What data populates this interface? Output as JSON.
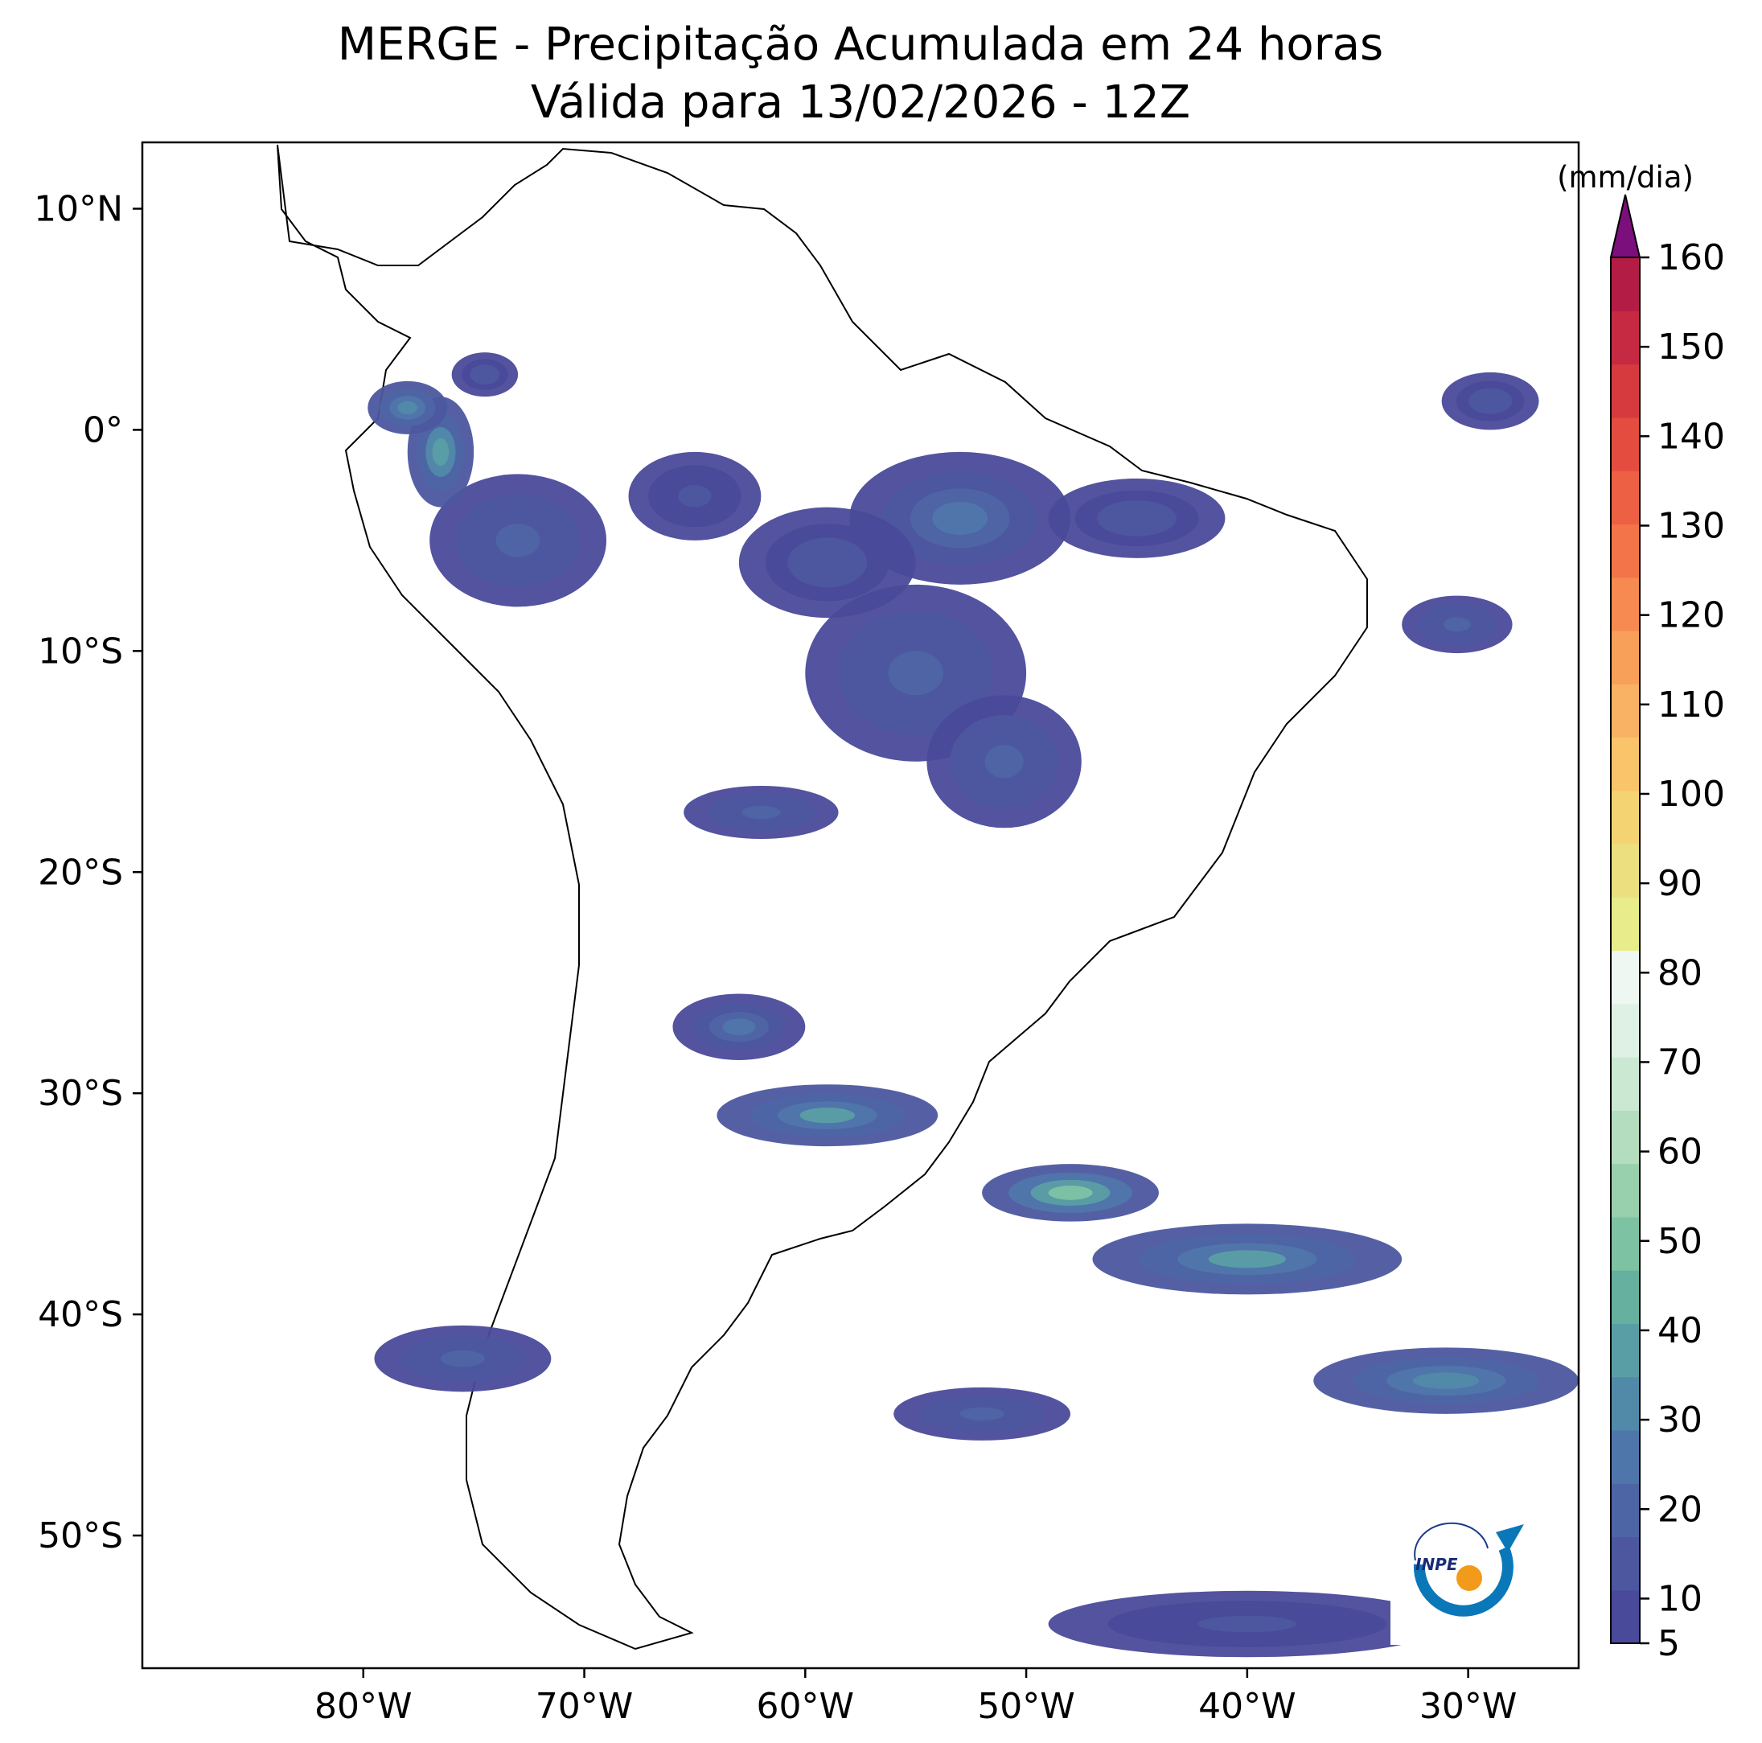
{
  "title": {
    "line1": "MERGE - Precipitação Acumulada em 24 horas",
    "line2": "Válida para 13/02/2026 - 12Z"
  },
  "axes": {
    "lon_range": [
      -90,
      -25
    ],
    "lat_range": [
      -56,
      13
    ],
    "x_ticks": [
      {
        "value": -80,
        "label": "80°W"
      },
      {
        "value": -70,
        "label": "70°W"
      },
      {
        "value": -60,
        "label": "60°W"
      },
      {
        "value": -50,
        "label": "50°W"
      },
      {
        "value": -40,
        "label": "40°W"
      },
      {
        "value": -30,
        "label": "30°W"
      }
    ],
    "y_ticks": [
      {
        "value": 10,
        "label": "10°N"
      },
      {
        "value": 0,
        "label": "0°"
      },
      {
        "value": -10,
        "label": "10°S"
      },
      {
        "value": -20,
        "label": "20°S"
      },
      {
        "value": -30,
        "label": "30°S"
      },
      {
        "value": -40,
        "label": "40°S"
      },
      {
        "value": -50,
        "label": "50°S"
      }
    ]
  },
  "colorbar": {
    "unit": "(mm/dia)",
    "min": 5,
    "max": 160,
    "extend": "max",
    "over_color": "#7b0f7c",
    "tick_labels": [
      "5",
      "10",
      "20",
      "30",
      "40",
      "50",
      "60",
      "70",
      "80",
      "90",
      "100",
      "110",
      "120",
      "130",
      "140",
      "150",
      "160"
    ],
    "tick_values": [
      5,
      10,
      20,
      30,
      40,
      50,
      60,
      70,
      80,
      90,
      100,
      110,
      120,
      130,
      140,
      150,
      160
    ],
    "colors": [
      "#4a4a9a",
      "#4c579f",
      "#4e65a5",
      "#4f76ab",
      "#518aa9",
      "#5a9ea5",
      "#66b09f",
      "#7ec2a4",
      "#98cfad",
      "#b3ddbe",
      "#cbe8d2",
      "#dff1e4",
      "#eef7f2",
      "#e8ec8a",
      "#ecdf7f",
      "#f4d472",
      "#f9c46a",
      "#f9b263",
      "#f89f59",
      "#f68a51",
      "#f37449",
      "#ed6043",
      "#e34c3e",
      "#d63a3f",
      "#c62a42",
      "#b31d45"
    ]
  },
  "precip_areas": [
    {
      "lon": -65,
      "lat": -3,
      "rx": 3,
      "ry": 2,
      "v": 12
    },
    {
      "lon": -73,
      "lat": -5,
      "rx": 4,
      "ry": 3,
      "v": 20
    },
    {
      "lon": -76.5,
      "lat": -1,
      "rx": 1.5,
      "ry": 2.5,
      "v": 40
    },
    {
      "lon": -78,
      "lat": 1,
      "rx": 1.8,
      "ry": 1.2,
      "v": 30
    },
    {
      "lon": -74.5,
      "lat": 2.5,
      "rx": 1.5,
      "ry": 1,
      "v": 15
    },
    {
      "lon": -53,
      "lat": -4,
      "rx": 5,
      "ry": 3,
      "v": 28
    },
    {
      "lon": -59,
      "lat": -6,
      "rx": 4,
      "ry": 2.5,
      "v": 15
    },
    {
      "lon": -45,
      "lat": -4,
      "rx": 4,
      "ry": 1.8,
      "v": 14
    },
    {
      "lon": -55,
      "lat": -11,
      "rx": 5,
      "ry": 4,
      "v": 18
    },
    {
      "lon": -51,
      "lat": -15,
      "rx": 3.5,
      "ry": 3,
      "v": 20
    },
    {
      "lon": -62,
      "lat": -17.3,
      "rx": 3.5,
      "ry": 1.2,
      "v": 20
    },
    {
      "lon": -30.5,
      "lat": -8.8,
      "rx": 2.5,
      "ry": 1.3,
      "v": 18
    },
    {
      "lon": -29,
      "lat": 1.3,
      "rx": 2.2,
      "ry": 1.3,
      "v": 15
    },
    {
      "lon": -63,
      "lat": -27,
      "rx": 3,
      "ry": 1.5,
      "v": 28
    },
    {
      "lon": -59,
      "lat": -31,
      "rx": 5,
      "ry": 1.4,
      "v": 35
    },
    {
      "lon": -48,
      "lat": -34.5,
      "rx": 4,
      "ry": 1.3,
      "v": 50
    },
    {
      "lon": -40,
      "lat": -37.5,
      "rx": 7,
      "ry": 1.6,
      "v": 35
    },
    {
      "lon": -31,
      "lat": -43,
      "rx": 6,
      "ry": 1.5,
      "v": 30
    },
    {
      "lon": -52,
      "lat": -44.5,
      "rx": 4,
      "ry": 1.2,
      "v": 20
    },
    {
      "lon": -75.5,
      "lat": -42,
      "rx": 4,
      "ry": 1.5,
      "v": 20
    },
    {
      "lon": -40,
      "lat": -54,
      "rx": 9,
      "ry": 1.5,
      "v": 12
    }
  ],
  "logo": {
    "text": "INPE"
  }
}
